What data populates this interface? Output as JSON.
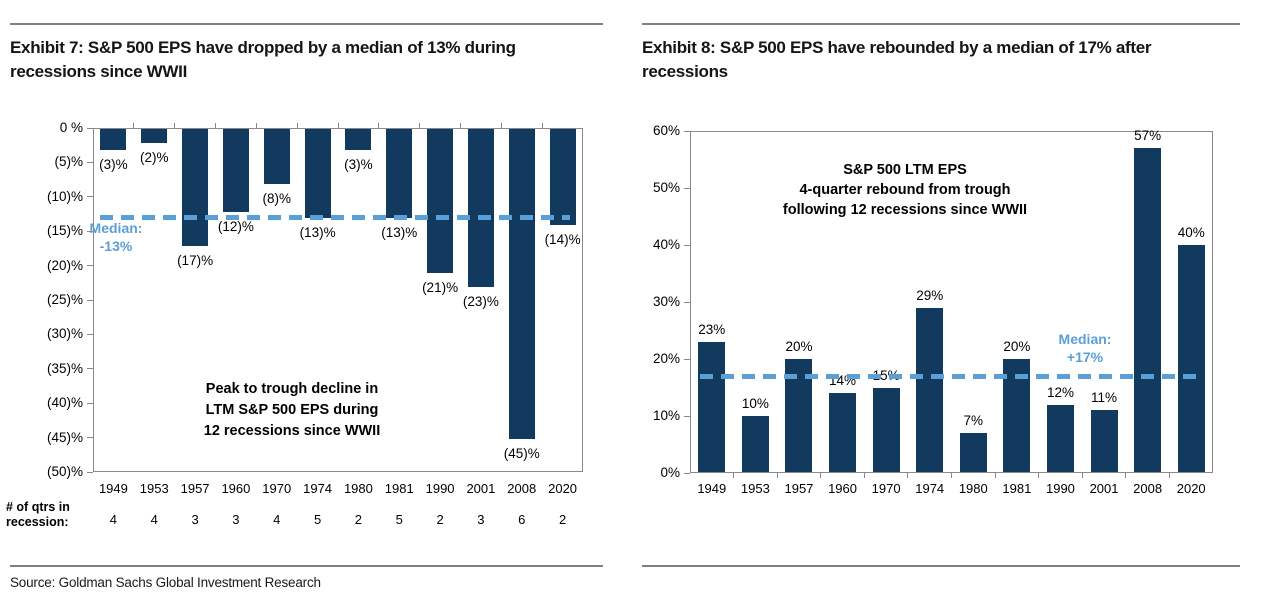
{
  "page": {
    "source": "Source: Goldman Sachs Global Investment Research"
  },
  "colors": {
    "bar": "#123a5e",
    "median": "#5b9fd8",
    "rule": "#7f7f7f",
    "axis": "#898989",
    "text": "#000000"
  },
  "chart_data": [
    {
      "id": "exhibit-7",
      "type": "bar",
      "title": "Exhibit 7: S&P 500 EPS have dropped by a median of 13% during recessions since WWII",
      "annotation": "Peak to trough decline in\nLTM S&P 500 EPS during\n12 recessions since WWII",
      "categories": [
        "1949",
        "1953",
        "1957",
        "1960",
        "1970",
        "1974",
        "1980",
        "1981",
        "1990",
        "2001",
        "2008",
        "2020"
      ],
      "values": [
        -3,
        -2,
        -17,
        -12,
        -8,
        -13,
        -3,
        -13,
        -21,
        -23,
        -45,
        -14
      ],
      "bar_labels": [
        "(3)%",
        "(2)%",
        "(17)%",
        "(12)%",
        "(8)%",
        "(13)%",
        "(3)%",
        "(13)%",
        "(21)%",
        "(23)%",
        "(45)%",
        "(14)%"
      ],
      "xlabel": "",
      "ylabel": "",
      "ylim": [
        -50,
        0
      ],
      "grid": false,
      "y_ticks": [
        {
          "v": 0,
          "label": "0 %"
        },
        {
          "v": -5,
          "label": "(5)%"
        },
        {
          "v": -10,
          "label": "(10)%"
        },
        {
          "v": -15,
          "label": "(15)%"
        },
        {
          "v": -20,
          "label": "(20)%"
        },
        {
          "v": -25,
          "label": "(25)%"
        },
        {
          "v": -30,
          "label": "(30)%"
        },
        {
          "v": -35,
          "label": "(35)%"
        },
        {
          "v": -40,
          "label": "(40)%"
        },
        {
          "v": -45,
          "label": "(45)%"
        },
        {
          "v": -50,
          "label": "(50)%"
        }
      ],
      "median": {
        "value": -13,
        "label": "Median:\n-13%"
      },
      "extra_row": {
        "label": "# of qtrs in\nrecession:",
        "values": [
          "4",
          "4",
          "3",
          "3",
          "4",
          "5",
          "2",
          "5",
          "2",
          "3",
          "6",
          "2"
        ]
      }
    },
    {
      "id": "exhibit-8",
      "type": "bar",
      "title": "Exhibit 8: S&P 500 EPS have rebounded by a median of 17% after recessions",
      "annotation": "S&P 500 LTM EPS\n4-quarter rebound from trough\nfollowing 12 recessions since WWII",
      "categories": [
        "1949",
        "1953",
        "1957",
        "1960",
        "1970",
        "1974",
        "1980",
        "1981",
        "1990",
        "2001",
        "2008",
        "2020"
      ],
      "values": [
        23,
        10,
        20,
        14,
        15,
        29,
        7,
        20,
        12,
        11,
        57,
        40
      ],
      "bar_labels": [
        "23%",
        "10%",
        "20%",
        "14%",
        "15%",
        "29%",
        "7%",
        "20%",
        "12%",
        "11%",
        "57%",
        "40%"
      ],
      "xlabel": "",
      "ylabel": "",
      "ylim": [
        0,
        60
      ],
      "grid": false,
      "y_ticks": [
        {
          "v": 0,
          "label": "0%"
        },
        {
          "v": 10,
          "label": "10%"
        },
        {
          "v": 20,
          "label": "20%"
        },
        {
          "v": 30,
          "label": "30%"
        },
        {
          "v": 40,
          "label": "40%"
        },
        {
          "v": 50,
          "label": "50%"
        },
        {
          "v": 60,
          "label": "60%"
        }
      ],
      "median": {
        "value": 17,
        "label": "Median:\n+17%"
      }
    }
  ]
}
